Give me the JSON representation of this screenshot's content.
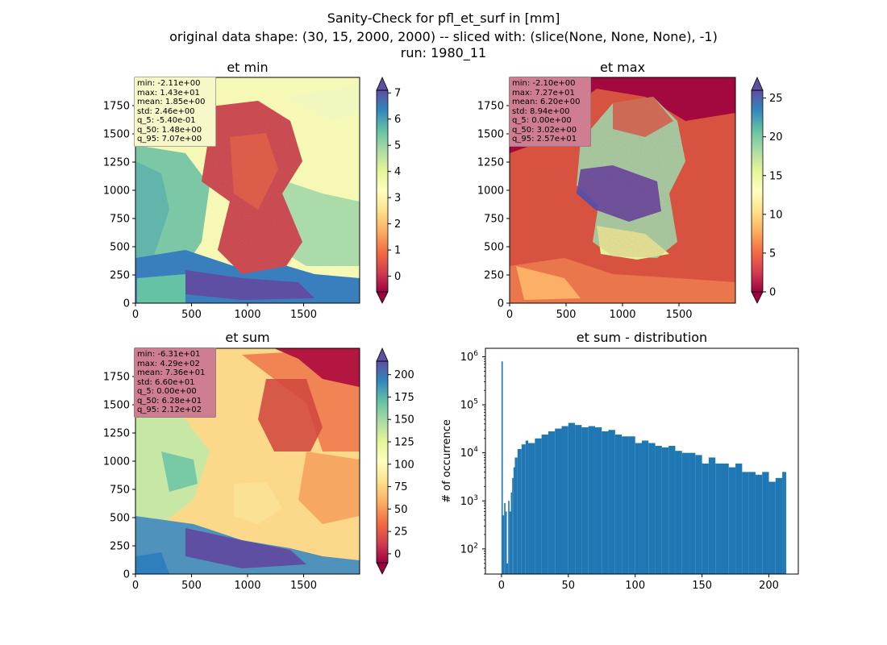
{
  "suptitle": {
    "line1": "Sanity-Check for pfl_et_surf in [mm]",
    "line2": "original data shape: (30, 15, 2000, 2000) -- sliced with: (slice(None, None, None), -1)",
    "line3": "run: 1980_11"
  },
  "panels": [
    {
      "title": "et min",
      "xticks": [
        "0",
        "500",
        "1000",
        "1500"
      ],
      "yticks": [
        "0",
        "250",
        "500",
        "750",
        "1000",
        "1250",
        "1500",
        "1750"
      ],
      "colorbar": {
        "ticks": [
          0,
          1,
          2,
          3,
          4,
          5,
          6,
          7
        ],
        "range": [
          -0.6,
          7.1
        ]
      },
      "stats": [
        "min: -2.11e+00",
        "max: 1.43e+01",
        "mean: 1.85e+00",
        "std: 2.46e+00",
        "q_5: -5.40e-01",
        "q_50: 1.48e+00",
        "q_95: 7.07e+00"
      ],
      "stats_bg": "#f7f7c9"
    },
    {
      "title": "et max",
      "xticks": [
        "0",
        "500",
        "1000",
        "1500"
      ],
      "yticks": [
        "0",
        "250",
        "500",
        "750",
        "1000",
        "1250",
        "1500",
        "1750"
      ],
      "colorbar": {
        "ticks": [
          0,
          5,
          10,
          15,
          20,
          25
        ],
        "range": [
          0,
          26
        ]
      },
      "stats": [
        "min: -2.10e+00",
        "max: 7.27e+01",
        "mean: 6.20e+00",
        "std: 8.94e+00",
        "q_5: 0.00e+00",
        "q_50: 3.02e+00",
        "q_95: 2.57e+01"
      ],
      "stats_bg": "#cf7e92"
    },
    {
      "title": "et sum",
      "xticks": [
        "0",
        "500",
        "1000",
        "1500"
      ],
      "yticks": [
        "0",
        "250",
        "500",
        "750",
        "1000",
        "1250",
        "1500",
        "1750"
      ],
      "colorbar": {
        "ticks": [
          0,
          25,
          50,
          75,
          100,
          125,
          150,
          175,
          200
        ],
        "range": [
          -10,
          215
        ]
      },
      "stats": [
        "min: -6.31e+01",
        "max: 4.29e+02",
        "mean: 7.36e+01",
        "std: 6.60e+01",
        "q_5: 0.00e+00",
        "q_50: 6.28e+01",
        "q_95: 2.12e+02"
      ],
      "stats_bg": "#cf7e92"
    }
  ],
  "chart_data": {
    "type": "bar",
    "title": "et sum - distribution",
    "ylabel": "# of occurrence",
    "xlabel": "",
    "yscale": "log",
    "xlim": [
      -12,
      222
    ],
    "ylim": [
      30,
      1500000
    ],
    "xticks": [
      0,
      50,
      100,
      150,
      200
    ],
    "yticks": [
      100,
      1000,
      10000,
      100000,
      1000000
    ],
    "bar_color": "#1f77b4",
    "bin_width": 1,
    "x": [
      0,
      1,
      2,
      3,
      4,
      5,
      6,
      7,
      8,
      9,
      10,
      12,
      15,
      18,
      20,
      25,
      30,
      35,
      40,
      45,
      50,
      55,
      60,
      65,
      70,
      75,
      80,
      85,
      90,
      95,
      100,
      105,
      110,
      115,
      120,
      125,
      130,
      135,
      140,
      145,
      150,
      155,
      160,
      165,
      170,
      175,
      180,
      185,
      190,
      195,
      200,
      205,
      210,
      212
    ],
    "values": [
      800000,
      500,
      900,
      600,
      50,
      1000,
      600,
      1500,
      3000,
      5000,
      8000,
      12000,
      15000,
      18000,
      16000,
      20000,
      24000,
      28000,
      32000,
      36000,
      42000,
      38000,
      34000,
      36000,
      34000,
      28000,
      30000,
      24000,
      22000,
      22000,
      16000,
      18000,
      16000,
      14000,
      13000,
      14000,
      11000,
      10000,
      10000,
      9000,
      6000,
      8000,
      6000,
      6000,
      5000,
      6000,
      4000,
      4000,
      3500,
      4000,
      2500,
      3000,
      4000,
      4000
    ]
  }
}
